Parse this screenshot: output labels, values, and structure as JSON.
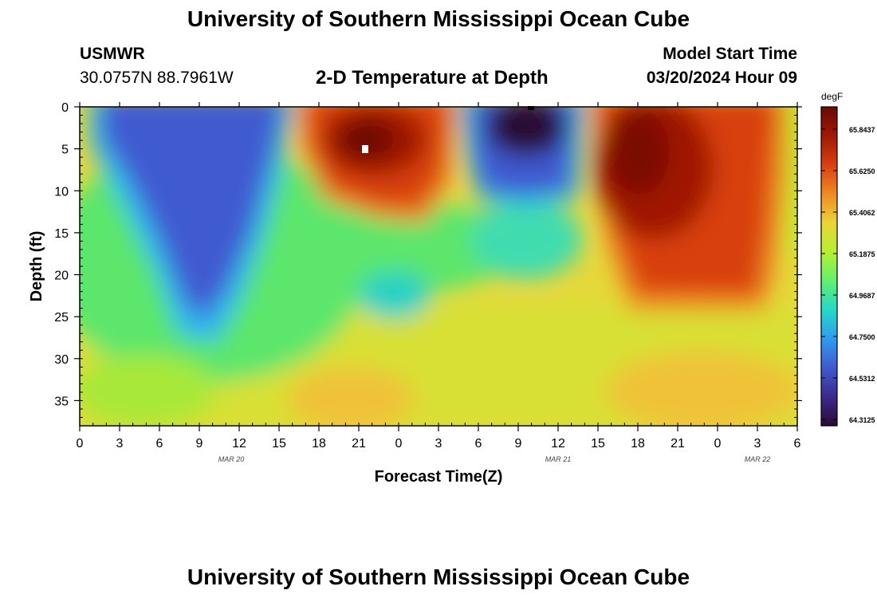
{
  "header": {
    "title": "University of Southern Mississippi Ocean Cube",
    "station": "USMWR",
    "location": "30.0757N  88.7961W",
    "plot_title": "2-D Temperature at Depth",
    "model_start_label": "Model Start Time",
    "model_start_value": "03/20/2024 Hour 09"
  },
  "footer": {
    "title": "University of Southern Mississippi Ocean Cube"
  },
  "colorbar": {
    "unit": "degF",
    "ticks": [
      "65.8437",
      "65.6250",
      "65.4062",
      "65.1875",
      "64.9687",
      "64.7500",
      "64.5312",
      "64.3125"
    ],
    "colors": [
      "#2a0a35",
      "#3b2a8c",
      "#3f5ad0",
      "#2f9bf0",
      "#25d8c8",
      "#60f070",
      "#b8f030",
      "#ead438",
      "#f08a24",
      "#d84010",
      "#a01805",
      "#6a0a05"
    ]
  },
  "chart_data": {
    "type": "heatmap",
    "title": "2-D Temperature at Depth",
    "xlabel": "Forecast Time(Z)",
    "ylabel": "Depth (ft)",
    "x_ticks": [
      "0",
      "3",
      "6",
      "9",
      "12",
      "15",
      "18",
      "21",
      "0",
      "3",
      "6",
      "9",
      "12",
      "15",
      "18",
      "21",
      "0",
      "3",
      "6"
    ],
    "x_date_labels": [
      "MAR 20",
      "MAR 21",
      "MAR 22"
    ],
    "y_ticks": [
      "0",
      "5",
      "10",
      "15",
      "20",
      "25",
      "30",
      "35"
    ],
    "ylim": [
      38,
      0
    ],
    "xlim_hours": [
      0,
      54
    ],
    "colorbar_range_degF": [
      64.3125,
      65.8437
    ],
    "features": [
      {
        "name": "cool-core-1",
        "hours": [
          1,
          16
        ],
        "depth_ft": [
          0,
          28
        ],
        "approx_degF": 64.8
      },
      {
        "name": "warm-core-1",
        "hours": [
          16.5,
          28
        ],
        "depth_ft": [
          0,
          14
        ],
        "approx_degF": 65.8
      },
      {
        "name": "cold-core",
        "hours": [
          28,
          38
        ],
        "depth_ft": [
          0,
          11
        ],
        "approx_degF": 64.4
      },
      {
        "name": "warm-core-2",
        "hours": [
          39,
          52
        ],
        "depth_ft": [
          0,
          23
        ],
        "approx_degF": 65.75
      },
      {
        "name": "background",
        "depth_ft": [
          25,
          38
        ],
        "approx_degF": 65.35
      }
    ]
  }
}
